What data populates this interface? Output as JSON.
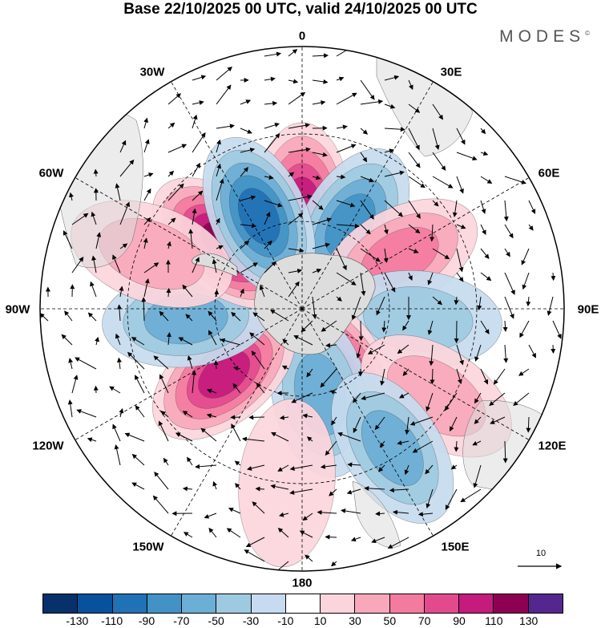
{
  "title": "Base 22/10/2025 00 UTC, valid 24/10/2025 00 UTC",
  "brand": {
    "name": "MODES",
    "mark": "©"
  },
  "longitude_labels": {
    "lon_0": "0",
    "lon_30e": "30E",
    "lon_60e": "60E",
    "lon_90e": "90E",
    "lon_120e": "120E",
    "lon_150e": "150E",
    "lon_180": "180",
    "lon_150w": "150W",
    "lon_120w": "120W",
    "lon_90w": "90W",
    "lon_60w": "60W",
    "lon_30w": "30W"
  },
  "map": {
    "projection": "south polar stereographic",
    "contour_lobes": [
      {
        "lon_deg": 0,
        "lat_deg": -55,
        "value": 95
      },
      {
        "lon_deg": 30,
        "lat_deg": -57,
        "value": -85
      },
      {
        "lon_deg": 62,
        "lat_deg": -52,
        "value": 60
      },
      {
        "lon_deg": 95,
        "lat_deg": -50,
        "value": -45
      },
      {
        "lon_deg": 150,
        "lat_deg": -65,
        "value": 90
      },
      {
        "lon_deg": 168,
        "lat_deg": -60,
        "value": -65
      },
      {
        "lon_deg": 230,
        "lat_deg": -55,
        "value": 90
      },
      {
        "lon_deg": 265,
        "lat_deg": -50,
        "value": -60
      },
      {
        "lon_deg": 310,
        "lat_deg": -55,
        "value": 120
      },
      {
        "lon_deg": 335,
        "lat_deg": -55,
        "value": -100
      },
      {
        "lon_deg": 290,
        "lat_deg": -35,
        "value": 40
      },
      {
        "lon_deg": 123,
        "lat_deg": -35,
        "value": 45
      },
      {
        "lon_deg": 147,
        "lat_deg": -33,
        "value": -55
      },
      {
        "lon_deg": 185,
        "lat_deg": -30,
        "value": 25
      }
    ],
    "land_color": "#dddddd"
  },
  "reference_vector": {
    "label": "10"
  },
  "colorbar": {
    "colors": [
      "#08306b",
      "#08519c",
      "#2171b5",
      "#4292c6",
      "#6baed6",
      "#9ecae1",
      "#c6dbef",
      "#ffffff",
      "#fcd5dc",
      "#f8a8ba",
      "#f37ba0",
      "#e34a8e",
      "#c51b7d",
      "#8e0152",
      "#54278f"
    ],
    "tick_labels": [
      "-130",
      "-110",
      "-90",
      "-70",
      "-50",
      "-30",
      "-10",
      "10",
      "30",
      "50",
      "70",
      "90",
      "110",
      "130"
    ]
  }
}
